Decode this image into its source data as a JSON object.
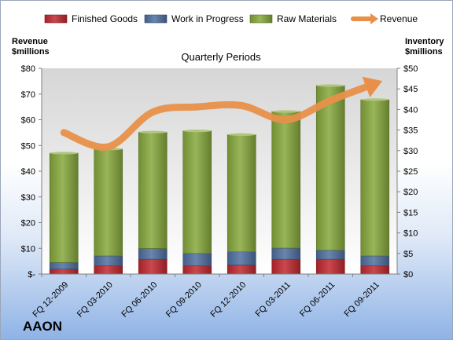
{
  "brand": "AAON",
  "chart_data": {
    "type": "bar",
    "subtitle": "Quarterly Periods",
    "ylabel_left": "Revenue $millions",
    "ylabel_left_lines": [
      "Revenue",
      "$millions"
    ],
    "ylabel_right": "Inventory $millions",
    "ylabel_right_lines": [
      "Inventory",
      "$millions"
    ],
    "categories": [
      "FQ 12-2009",
      "FQ 03-2010",
      "FQ 06-2010",
      "FQ 09-2010",
      "FQ 12-2010",
      "FQ 03-2011",
      "FQ 06-2011",
      "FQ 09-2011"
    ],
    "left_ticks": [
      "$-",
      "$10",
      "$20",
      "$30",
      "$40",
      "$50",
      "$60",
      "$70",
      "$80"
    ],
    "right_ticks": [
      "$0",
      "$5",
      "$10",
      "$15",
      "$20",
      "$25",
      "$30",
      "$35",
      "$40",
      "$45",
      "$50"
    ],
    "ylim_left": [
      0,
      80
    ],
    "ylim_right": [
      0,
      50
    ],
    "legend_position": "top",
    "grid": false,
    "series": [
      {
        "name": "Finished Goods",
        "type": "stacked-bar",
        "axis": "right",
        "color": "#c0282e",
        "values": [
          1.2,
          2.0,
          3.6,
          2.0,
          2.2,
          3.6,
          3.6,
          2.0
        ]
      },
      {
        "name": "Work in Progress",
        "type": "stacked-bar",
        "axis": "right",
        "color": "#4f6fa0",
        "values": [
          1.6,
          2.4,
          2.6,
          3.0,
          3.2,
          2.7,
          2.2,
          2.4
        ]
      },
      {
        "name": "Raw Materials",
        "type": "stacked-bar",
        "axis": "right",
        "color": "#86a83c",
        "values": [
          26.6,
          26.0,
          28.3,
          29.8,
          28.5,
          33.2,
          40.0,
          38.0
        ]
      },
      {
        "name": "Revenue",
        "type": "line",
        "axis": "left",
        "color": "#e8904a",
        "values": [
          55,
          49.5,
          63,
          65,
          65.5,
          60,
          67.5,
          74
        ]
      }
    ]
  }
}
